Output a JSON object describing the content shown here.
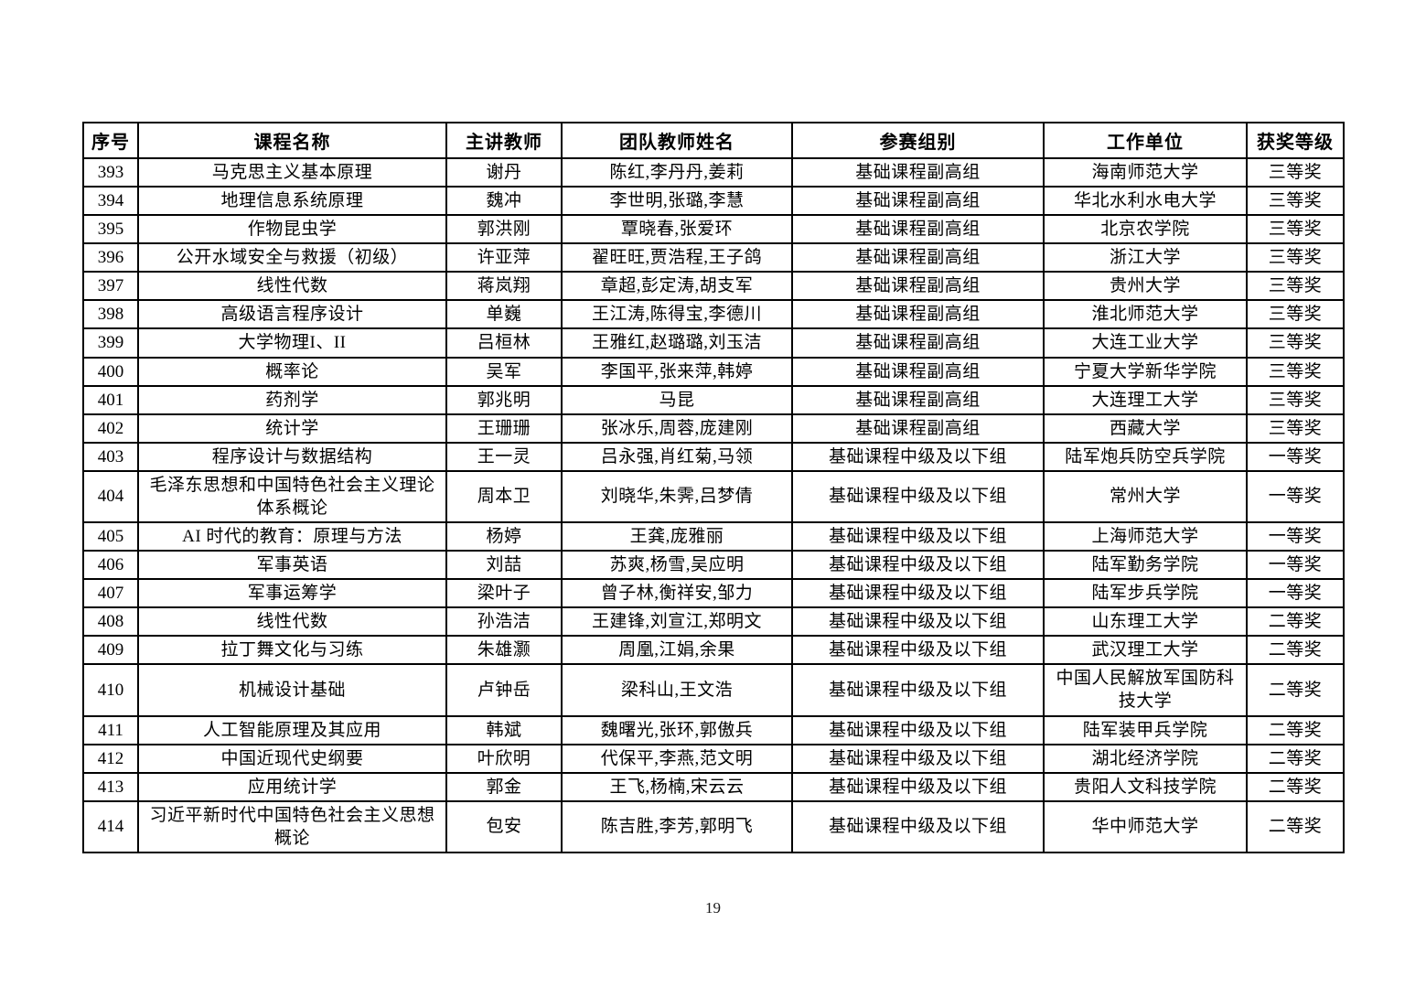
{
  "page": {
    "number": "19"
  },
  "table": {
    "columns": [
      "序号",
      "课程名称",
      "主讲教师",
      "团队教师姓名",
      "参赛组别",
      "工作单位",
      "获奖等级"
    ],
    "rows": [
      [
        "393",
        "马克思主义基本原理",
        "谢丹",
        "陈红,李丹丹,姜莉",
        "基础课程副高组",
        "海南师范大学",
        "三等奖"
      ],
      [
        "394",
        "地理信息系统原理",
        "魏冲",
        "李世明,张璐,李慧",
        "基础课程副高组",
        "华北水利水电大学",
        "三等奖"
      ],
      [
        "395",
        "作物昆虫学",
        "郭洪刚",
        "覃晓春,张爱环",
        "基础课程副高组",
        "北京农学院",
        "三等奖"
      ],
      [
        "396",
        "公开水域安全与救援（初级）",
        "许亚萍",
        "翟旺旺,贾浩程,王子鸽",
        "基础课程副高组",
        "浙江大学",
        "三等奖"
      ],
      [
        "397",
        "线性代数",
        "蒋岚翔",
        "章超,彭定涛,胡支军",
        "基础课程副高组",
        "贵州大学",
        "三等奖"
      ],
      [
        "398",
        "高级语言程序设计",
        "单巍",
        "王江涛,陈得宝,李德川",
        "基础课程副高组",
        "淮北师范大学",
        "三等奖"
      ],
      [
        "399",
        "大学物理I、II",
        "吕桓林",
        "王雅红,赵璐璐,刘玉洁",
        "基础课程副高组",
        "大连工业大学",
        "三等奖"
      ],
      [
        "400",
        "概率论",
        "吴军",
        "李国平,张来萍,韩婷",
        "基础课程副高组",
        "宁夏大学新华学院",
        "三等奖"
      ],
      [
        "401",
        "药剂学",
        "郭兆明",
        "马昆",
        "基础课程副高组",
        "大连理工大学",
        "三等奖"
      ],
      [
        "402",
        "统计学",
        "王珊珊",
        "张冰乐,周蓉,庞建刚",
        "基础课程副高组",
        "西藏大学",
        "三等奖"
      ],
      [
        "403",
        "程序设计与数据结构",
        "王一灵",
        "吕永强,肖红菊,马领",
        "基础课程中级及以下组",
        "陆军炮兵防空兵学院",
        "一等奖"
      ],
      [
        "404",
        "毛泽东思想和中国特色社会主义理论体系概论",
        "周本卫",
        "刘晓华,朱霁,吕梦倩",
        "基础课程中级及以下组",
        "常州大学",
        "一等奖"
      ],
      [
        "405",
        "AI 时代的教育：原理与方法",
        "杨婷",
        "王龚,庞雅丽",
        "基础课程中级及以下组",
        "上海师范大学",
        "一等奖"
      ],
      [
        "406",
        "军事英语",
        "刘喆",
        "苏爽,杨雪,吴应明",
        "基础课程中级及以下组",
        "陆军勤务学院",
        "一等奖"
      ],
      [
        "407",
        "军事运筹学",
        "梁叶子",
        "曾子林,衡祥安,邹力",
        "基础课程中级及以下组",
        "陆军步兵学院",
        "一等奖"
      ],
      [
        "408",
        "线性代数",
        "孙浩洁",
        "王建锋,刘宣江,郑明文",
        "基础课程中级及以下组",
        "山东理工大学",
        "二等奖"
      ],
      [
        "409",
        "拉丁舞文化与习练",
        "朱雄灏",
        "周凰,江娟,余果",
        "基础课程中级及以下组",
        "武汉理工大学",
        "二等奖"
      ],
      [
        "410",
        "机械设计基础",
        "卢钟岳",
        "梁科山,王文浩",
        "基础课程中级及以下组",
        "中国人民解放军国防科技大学",
        "二等奖"
      ],
      [
        "411",
        "人工智能原理及其应用",
        "韩斌",
        "魏曙光,张环,郭傲兵",
        "基础课程中级及以下组",
        "陆军装甲兵学院",
        "二等奖"
      ],
      [
        "412",
        "中国近现代史纲要",
        "叶欣明",
        "代保平,李燕,范文明",
        "基础课程中级及以下组",
        "湖北经济学院",
        "二等奖"
      ],
      [
        "413",
        "应用统计学",
        "郭金",
        "王飞,杨楠,宋云云",
        "基础课程中级及以下组",
        "贵阳人文科技学院",
        "二等奖"
      ],
      [
        "414",
        "习近平新时代中国特色社会主义思想概论",
        "包安",
        "陈吉胜,李芳,郭明飞",
        "基础课程中级及以下组",
        "华中师范大学",
        "二等奖"
      ]
    ]
  }
}
